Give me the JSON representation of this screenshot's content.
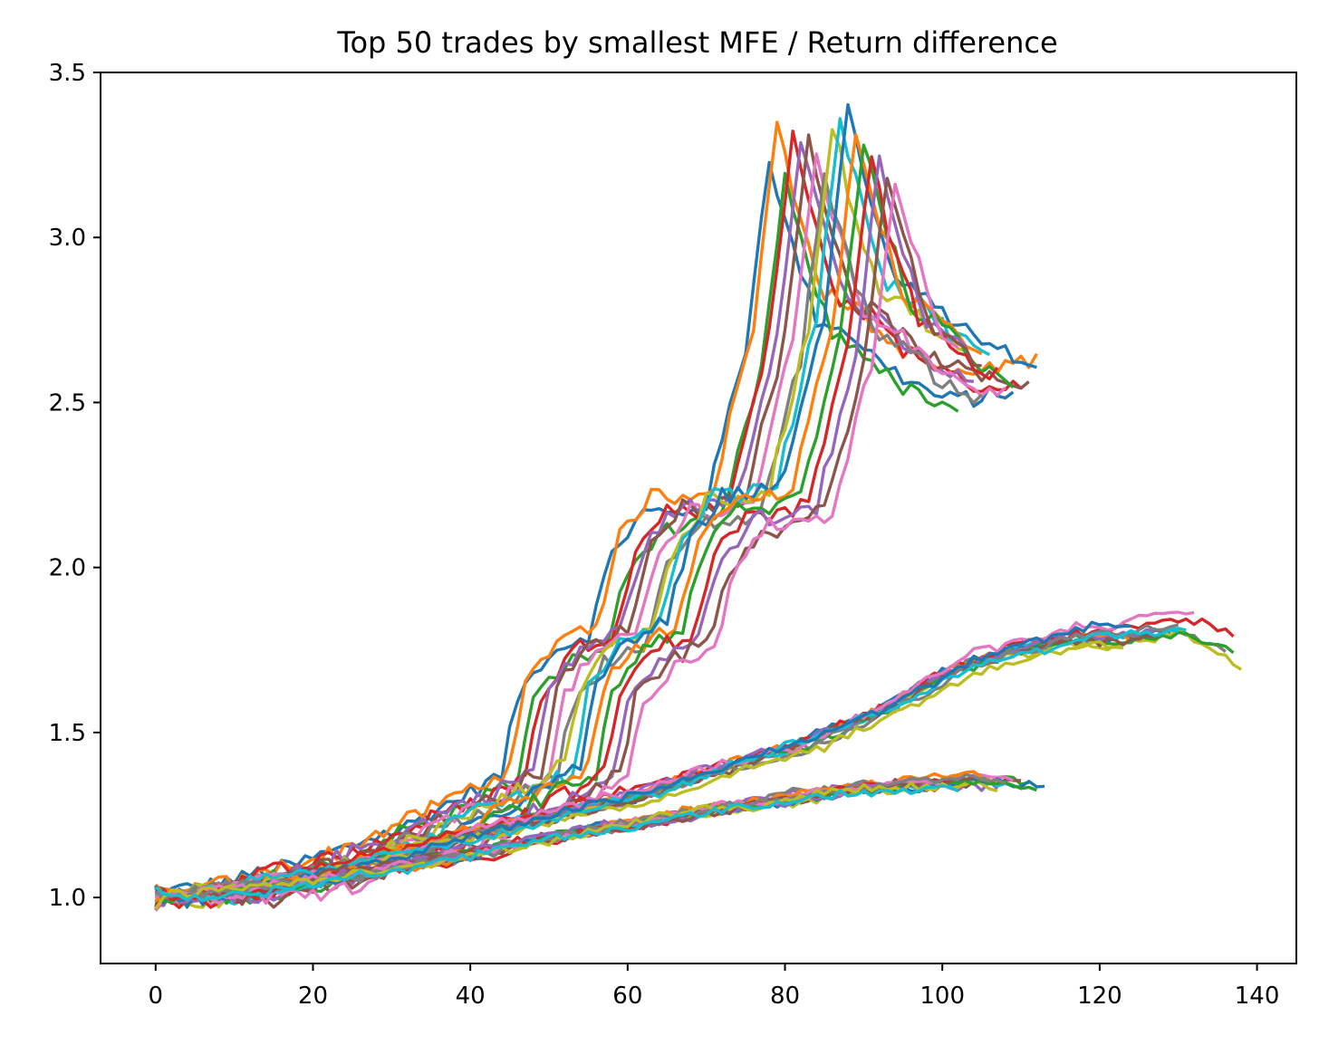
{
  "chart_data": {
    "type": "line",
    "title": "Top 50 trades by smallest MFE / Return difference",
    "xlabel": "",
    "ylabel": "",
    "xlim": [
      -7,
      145
    ],
    "ylim": [
      0.8,
      3.5
    ],
    "xticks": [
      0,
      20,
      40,
      60,
      80,
      100,
      120,
      140
    ],
    "yticks": [
      1.0,
      1.5,
      2.0,
      2.5,
      3.0,
      3.5
    ],
    "xtick_labels": [
      "0",
      "20",
      "40",
      "60",
      "80",
      "100",
      "120",
      "140"
    ],
    "ytick_labels": [
      "1.0",
      "1.5",
      "2.0",
      "2.5",
      "3.0",
      "3.5"
    ],
    "grid": false,
    "legend": "none",
    "palette": [
      "#1f77b4",
      "#ff7f0e",
      "#2ca02c",
      "#d62728",
      "#9467bd",
      "#8c564b",
      "#e377c2",
      "#7f7f7f",
      "#bcbd22",
      "#17becf"
    ],
    "series_groups": [
      {
        "description": "high-return cluster",
        "count": 17,
        "length_range": [
          100,
          113
        ],
        "offset_step": 1,
        "keypoints_x": [
          0,
          10,
          20,
          30,
          40,
          44,
          46,
          50,
          55,
          58,
          62,
          66,
          70,
          75,
          78,
          80,
          84,
          88,
          92,
          96,
          100,
          105,
          112
        ],
        "keypoints_y": [
          1.0,
          1.05,
          1.12,
          1.22,
          1.33,
          1.38,
          1.62,
          1.75,
          1.8,
          2.05,
          2.18,
          2.18,
          2.22,
          2.7,
          3.3,
          3.1,
          2.8,
          2.75,
          2.65,
          2.6,
          2.55,
          2.55,
          2.6
        ]
      },
      {
        "description": "mid-return cluster",
        "count": 14,
        "length_range": [
          122,
          139
        ],
        "offset_step": 0.3,
        "keypoints_x": [
          0,
          20,
          40,
          60,
          70,
          80,
          90,
          100,
          105,
          110,
          115,
          120,
          125,
          130,
          135,
          138
        ],
        "keypoints_y": [
          1.0,
          1.08,
          1.2,
          1.32,
          1.4,
          1.47,
          1.57,
          1.7,
          1.74,
          1.77,
          1.8,
          1.8,
          1.82,
          1.83,
          1.78,
          1.7
        ]
      },
      {
        "description": "low-return cluster",
        "count": 19,
        "length_range": [
          100,
          113
        ],
        "offset_step": 0,
        "keypoints_x": [
          0,
          10,
          20,
          30,
          40,
          50,
          60,
          70,
          80,
          90,
          100,
          106,
          112
        ],
        "keypoints_y": [
          1.0,
          1.02,
          1.05,
          1.09,
          1.13,
          1.18,
          1.22,
          1.26,
          1.3,
          1.33,
          1.35,
          1.36,
          1.34
        ]
      }
    ]
  }
}
